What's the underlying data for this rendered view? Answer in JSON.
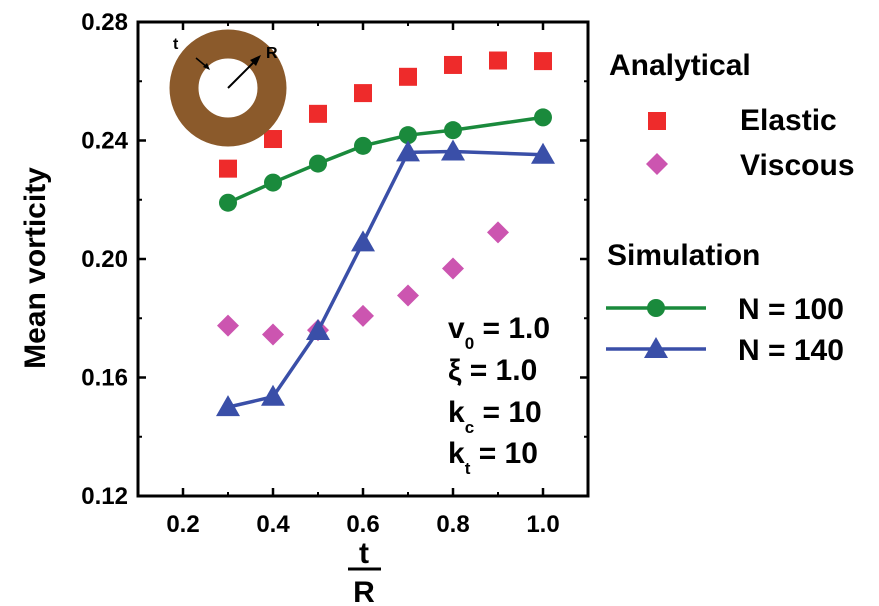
{
  "chart_data": {
    "type": "scatter",
    "xlabel_numerator": "t",
    "xlabel_denominator": "R",
    "ylabel": "Mean vorticity",
    "xlim": [
      0.1,
      1.1
    ],
    "ylim": [
      0.12,
      0.28
    ],
    "xticks": [
      "0.2",
      "0.4",
      "0.6",
      "0.8",
      "1.0"
    ],
    "yticks": [
      "0.12",
      "0.16",
      "0.20",
      "0.24",
      "0.28"
    ],
    "xtick_values": [
      0.2,
      0.4,
      0.6,
      0.8,
      1.0
    ],
    "ytick_values": [
      0.12,
      0.16,
      0.2,
      0.24,
      0.28
    ],
    "legend_groups": [
      {
        "heading": "Analytical"
      },
      {
        "heading": "Simulation"
      }
    ],
    "series": [
      {
        "name": "Elastic",
        "group": "Analytical",
        "marker": "square",
        "line": false,
        "color": "#ee2b2b",
        "x": [
          0.3,
          0.4,
          0.5,
          0.6,
          0.7,
          0.8,
          0.9,
          1.0
        ],
        "y": [
          0.2305,
          0.2405,
          0.249,
          0.256,
          0.2615,
          0.2655,
          0.267,
          0.2668
        ]
      },
      {
        "name": "Viscous",
        "group": "Analytical",
        "marker": "diamond",
        "line": false,
        "color": "#cc55b0",
        "x": [
          0.3,
          0.4,
          0.5,
          0.6,
          0.7,
          0.8,
          0.9
        ],
        "y": [
          0.1775,
          0.1745,
          0.176,
          0.1808,
          0.1877,
          0.1968,
          0.209
        ]
      },
      {
        "name": "N = 100",
        "group": "Simulation",
        "marker": "circle",
        "line": true,
        "color": "#1a8a3c",
        "x": [
          0.3,
          0.4,
          0.5,
          0.6,
          0.7,
          0.8,
          1.0
        ],
        "y": [
          0.219,
          0.2258,
          0.2322,
          0.2382,
          0.2418,
          0.2435,
          0.2478
        ]
      },
      {
        "name": "N = 140",
        "group": "Simulation",
        "marker": "triangle",
        "line": true,
        "color": "#3a4fa8",
        "x": [
          0.3,
          0.4,
          0.5,
          0.6,
          0.7,
          0.8,
          1.0
        ],
        "y": [
          0.15,
          0.1535,
          0.1757,
          0.2056,
          0.236,
          0.2363,
          0.2352
        ]
      }
    ],
    "parameters": [
      {
        "main": "v",
        "sub": "0",
        "value": " = 1.0"
      },
      {
        "main": "ξ",
        "sub": "",
        "value": " = 1.0"
      },
      {
        "main": "k",
        "sub": "c",
        "value": " = 10"
      },
      {
        "main": "k",
        "sub": "t",
        "value": " = 10"
      }
    ],
    "inset": {
      "ring_color": "#8b5a2b",
      "labels": {
        "t": "t",
        "R": "R"
      }
    }
  }
}
